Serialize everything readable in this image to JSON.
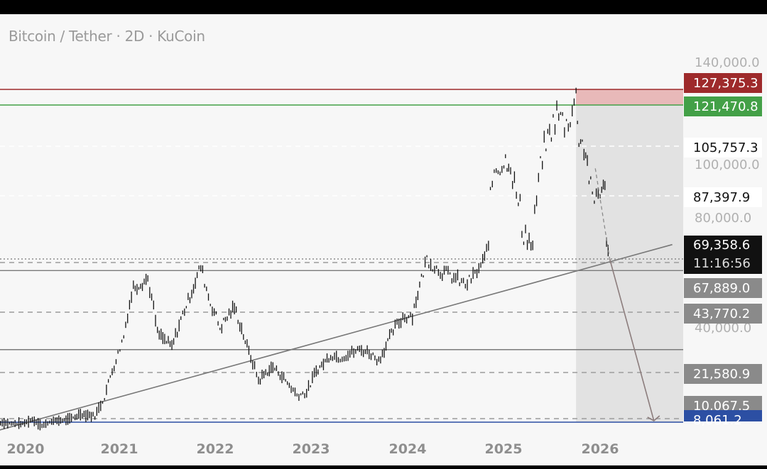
{
  "header": {
    "title": "Bitcoin / Tether · 2D · KuCoin"
  },
  "colors": {
    "background": "#f7f7f7",
    "candles": "#111111",
    "resistance_red": "#9e2a2b",
    "support_green": "#43a047",
    "support_blue": "#2c4fa3",
    "trendline": "#777777",
    "dashed_level": "#9c9c9c",
    "shade": "#e2e2e2",
    "shade_top": "#e8b9b9"
  },
  "chart_data": {
    "type": "candlestick",
    "symbol": "Bitcoin / Tether",
    "interval": "2D",
    "exchange": "KuCoin",
    "x_axis": {
      "ticks": [
        "2020",
        "2021",
        "2022",
        "2023",
        "2024",
        "2025",
        "2026"
      ]
    },
    "y_axis": {
      "ticks": [
        "140,000.0",
        "100,000.0",
        "80,000.0",
        "40,000.0"
      ],
      "range": [
        7000,
        145000
      ]
    },
    "levels": [
      {
        "label": "127,375.3",
        "value": 127375.3,
        "style": "solid",
        "color": "#9e2a2b",
        "badge": "#9e2a2b",
        "badge_text": "#ffffff"
      },
      {
        "label": "121,470.8",
        "value": 121470.8,
        "style": "solid",
        "color": "#43a047",
        "badge": "#43a047",
        "badge_text": "#ffffff"
      },
      {
        "label": "105,757.3",
        "value": 105757.3,
        "style": "dashed",
        "color": "#ffffff",
        "badge": "#ffffff",
        "badge_text": "#111111"
      },
      {
        "label": "87,397.9",
        "value": 87397.9,
        "style": "dashed",
        "color": "#ffffff",
        "badge": "#ffffff",
        "badge_text": "#111111"
      },
      {
        "label": "67,889.0",
        "value": 67889.0,
        "style": "dashed",
        "color": "#9c9c9c",
        "badge": "#8a8a8a",
        "badge_text": "#ffffff"
      },
      {
        "label": "43,770.2",
        "value": 43770.2,
        "style": "dashed",
        "color": "#9c9c9c",
        "badge": "#8a8a8a",
        "badge_text": "#ffffff"
      },
      {
        "label": "21,580.9",
        "value": 21580.9,
        "style": "dashed",
        "color": "#9c9c9c",
        "badge": "#8a8a8a",
        "badge_text": "#ffffff"
      },
      {
        "label": "10,067.5",
        "value": 10067.5,
        "style": "dashed",
        "color": "#9c9c9c",
        "badge": "#8a8a8a",
        "badge_text": "#ffffff"
      },
      {
        "label": "8,061.2",
        "value": 8061.2,
        "style": "solid",
        "color": "#2c4fa3",
        "badge": "#2c4fa3",
        "badge_text": "#ffffff"
      }
    ],
    "solid_grey_levels": [
      64000,
      30000
    ],
    "current_price": {
      "label": "69,358.6",
      "value": 69358.6,
      "countdown": "11:16:56"
    },
    "trendline": {
      "start": {
        "x": 2019.75,
        "y": 3500
      },
      "end": {
        "x": 2026.75,
        "y": 78000
      }
    },
    "projection": {
      "from": {
        "x": 2026.1,
        "y": 69358.6
      },
      "to": {
        "x": 2026.5,
        "y": 8061.2
      }
    },
    "shaded_zone": {
      "x_start": 2025.75,
      "x_end": 2026.7,
      "top": 127375.3,
      "bottom": 8061.2
    },
    "price_path": [
      [
        2019.75,
        7800
      ],
      [
        2019.9,
        7300
      ],
      [
        2020.0,
        7200
      ],
      [
        2020.1,
        9500
      ],
      [
        2020.2,
        6000
      ],
      [
        2020.3,
        8700
      ],
      [
        2020.45,
        9300
      ],
      [
        2020.6,
        11300
      ],
      [
        2020.75,
        10700
      ],
      [
        2020.85,
        15500
      ],
      [
        2020.95,
        24000
      ],
      [
        2021.05,
        35000
      ],
      [
        2021.15,
        56000
      ],
      [
        2021.3,
        60000
      ],
      [
        2021.4,
        36000
      ],
      [
        2021.55,
        31000
      ],
      [
        2021.7,
        47000
      ],
      [
        2021.85,
        66000
      ],
      [
        2021.95,
        48000
      ],
      [
        2022.05,
        38000
      ],
      [
        2022.2,
        46000
      ],
      [
        2022.35,
        29000
      ],
      [
        2022.45,
        19500
      ],
      [
        2022.6,
        23500
      ],
      [
        2022.75,
        19000
      ],
      [
        2022.85,
        16000
      ],
      [
        2022.95,
        16500
      ],
      [
        2023.05,
        22000
      ],
      [
        2023.2,
        28000
      ],
      [
        2023.3,
        27000
      ],
      [
        2023.5,
        30000
      ],
      [
        2023.6,
        29000
      ],
      [
        2023.7,
        26000
      ],
      [
        2023.85,
        37000
      ],
      [
        2023.95,
        42000
      ],
      [
        2024.05,
        43000
      ],
      [
        2024.2,
        70000
      ],
      [
        2024.3,
        65000
      ],
      [
        2024.5,
        60000
      ],
      [
        2024.6,
        57000
      ],
      [
        2024.7,
        62000
      ],
      [
        2024.8,
        69000
      ],
      [
        2024.9,
        98000
      ],
      [
        2025.0,
        100000
      ],
      [
        2025.05,
        102000
      ],
      [
        2025.15,
        85000
      ],
      [
        2025.3,
        77000
      ],
      [
        2025.4,
        103000
      ],
      [
        2025.55,
        118000
      ],
      [
        2025.65,
        114000
      ],
      [
        2025.75,
        124000
      ],
      [
        2025.78,
        110000
      ],
      [
        2025.85,
        104000
      ],
      [
        2025.92,
        86000
      ],
      [
        2026.0,
        90000
      ],
      [
        2026.05,
        89000
      ],
      [
        2026.1,
        69358.6
      ]
    ]
  }
}
